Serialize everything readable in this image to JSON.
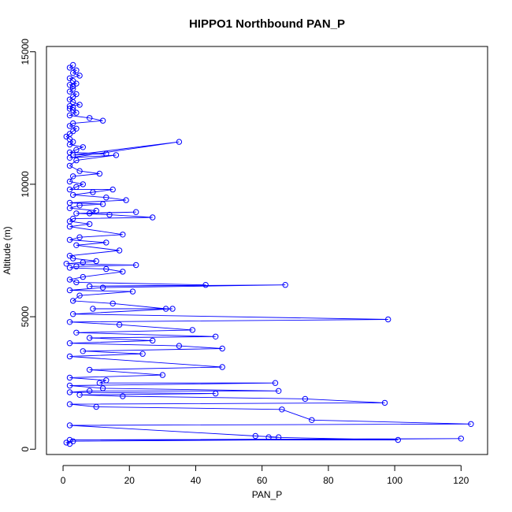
{
  "chart_data": {
    "type": "scatter",
    "title": "HIPPO1 Northbound PAN_P",
    "xlabel": "PAN_P",
    "ylabel": "Altitude (m)",
    "xlim": [
      -5,
      128
    ],
    "ylim": [
      -200,
      15200
    ],
    "xticks": [
      0,
      20,
      40,
      60,
      80,
      100,
      120
    ],
    "yticks": [
      0,
      5000,
      10000,
      15000
    ],
    "grid": false,
    "legend": "none",
    "marker": "open-circle",
    "connected": true,
    "color": "#0000ff",
    "series": [
      {
        "x": [
          3,
          2,
          4,
          3,
          5,
          2,
          3,
          4,
          2,
          3,
          3,
          2,
          4,
          3,
          2,
          3,
          5,
          2,
          3,
          2,
          3,
          4,
          2,
          8,
          12,
          3,
          2,
          4,
          3,
          2,
          1,
          2,
          3,
          2,
          6,
          4,
          2,
          13,
          3,
          35,
          2,
          16,
          4,
          2,
          5,
          11,
          3,
          2,
          6,
          4,
          2,
          15,
          9,
          3,
          13,
          19,
          2,
          12,
          5,
          2,
          10,
          8,
          22,
          4,
          14,
          27,
          3,
          2,
          8,
          2,
          18,
          5,
          2,
          13,
          4,
          17,
          2,
          3,
          10,
          6,
          1,
          22,
          4,
          2,
          13,
          18,
          6,
          2,
          4,
          43,
          8,
          67,
          12,
          2,
          21,
          5,
          3,
          15,
          31,
          9,
          33,
          3,
          98,
          2,
          17,
          39,
          4,
          46,
          8,
          27,
          2,
          35,
          48,
          6,
          24,
          2,
          48,
          8,
          30,
          2,
          13,
          11,
          64,
          2,
          12,
          65,
          8,
          2,
          46,
          5,
          18,
          73,
          97,
          2,
          10,
          66,
          75,
          123,
          2,
          58,
          65,
          62,
          101,
          2,
          120,
          3,
          1,
          2
        ],
        "y": [
          14500,
          14400,
          14300,
          14200,
          14100,
          14000,
          13900,
          13800,
          13750,
          13700,
          13600,
          13500,
          13400,
          13300,
          13200,
          13100,
          13000,
          12950,
          12900,
          12850,
          12800,
          12700,
          12600,
          12500,
          12400,
          12300,
          12200,
          12100,
          12000,
          11900,
          11800,
          11700,
          11600,
          11500,
          11400,
          11300,
          11200,
          11150,
          11100,
          11600,
          11000,
          11100,
          10900,
          10700,
          10500,
          10400,
          10300,
          10100,
          10000,
          9900,
          9800,
          9800,
          9700,
          9600,
          9500,
          9400,
          9300,
          9250,
          9200,
          9100,
          9000,
          8900,
          8950,
          8900,
          8850,
          8750,
          8700,
          8600,
          8500,
          8400,
          8100,
          8000,
          7900,
          7800,
          7700,
          7500,
          7300,
          7200,
          7100,
          7050,
          7000,
          6950,
          6900,
          6850,
          6800,
          6700,
          6500,
          6400,
          6300,
          6200,
          6150,
          6200,
          6100,
          6000,
          5950,
          5800,
          5600,
          5500,
          5300,
          5300,
          5300,
          5100,
          4900,
          4800,
          4700,
          4500,
          4400,
          4250,
          4200,
          4100,
          4000,
          3900,
          3800,
          3700,
          3600,
          3500,
          3100,
          3000,
          2800,
          2700,
          2600,
          2500,
          2500,
          2400,
          2300,
          2200,
          2200,
          2150,
          2100,
          2050,
          2000,
          1900,
          1750,
          1700,
          1600,
          1500,
          1100,
          950,
          900,
          500,
          450,
          450,
          350,
          350,
          400,
          300,
          250,
          200
        ]
      }
    ]
  }
}
